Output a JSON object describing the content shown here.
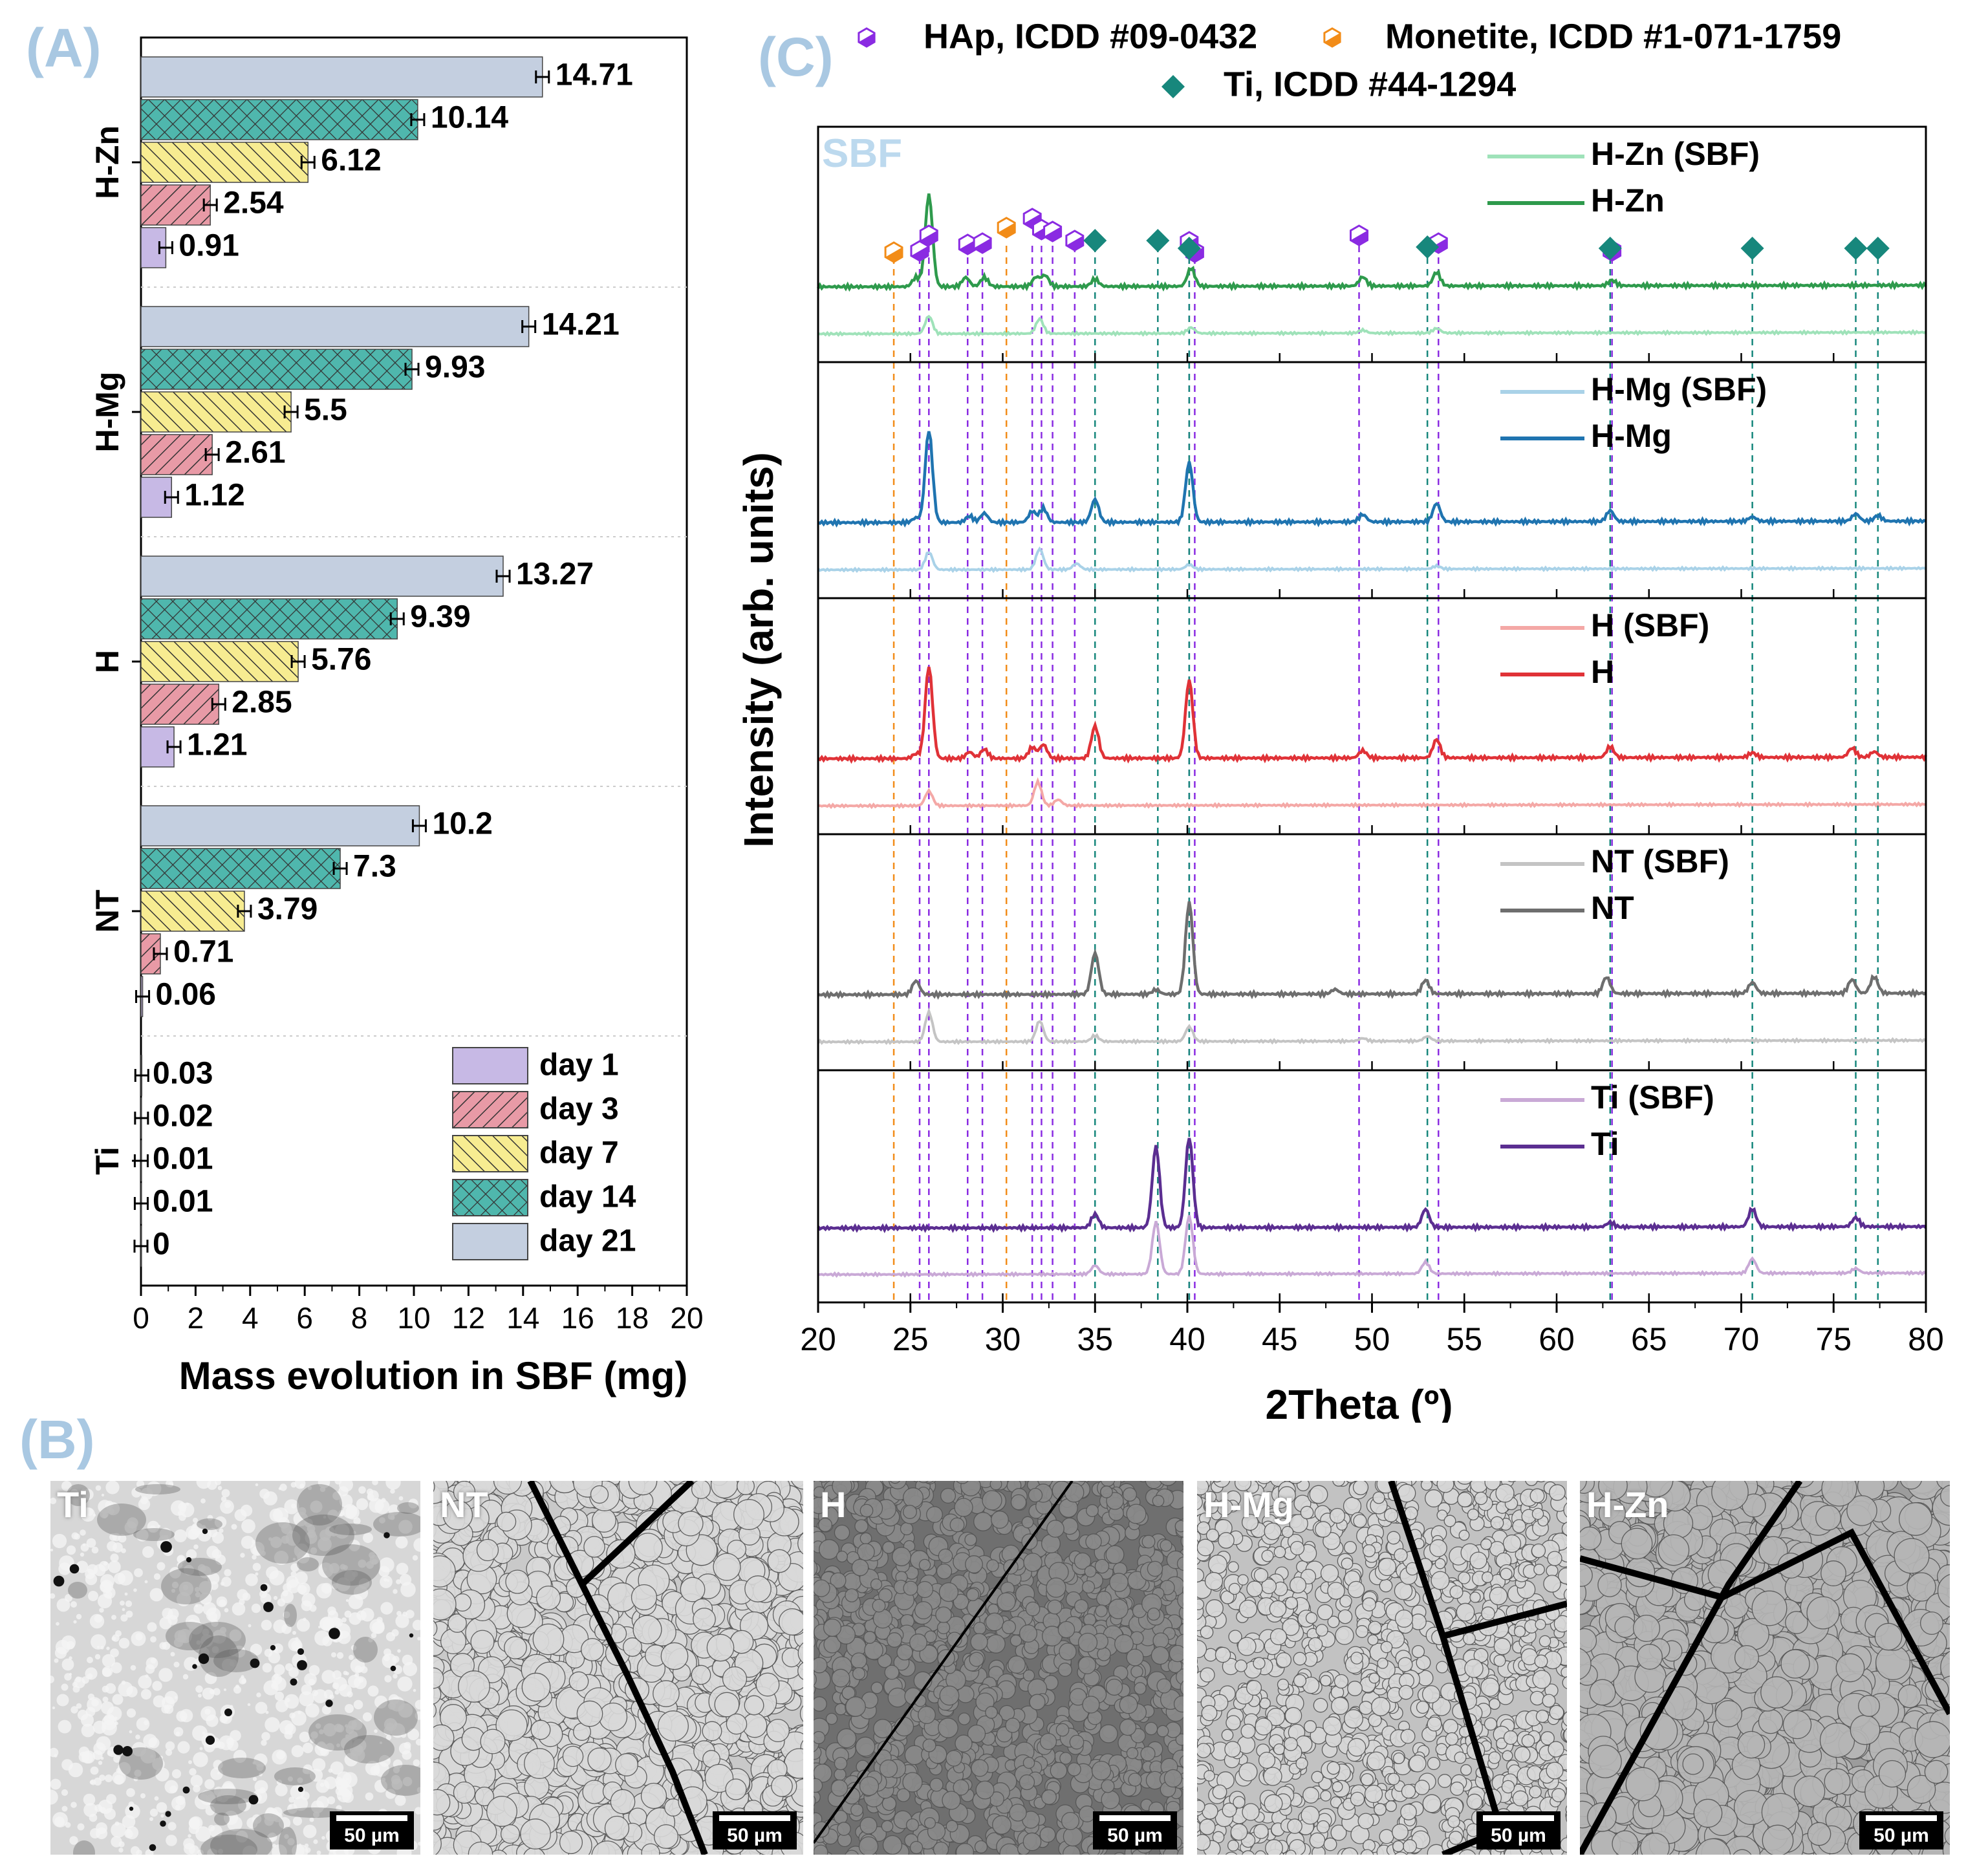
{
  "panel_letters": {
    "a": "(A)",
    "b": "(B)",
    "c": "(C)"
  },
  "colors": {
    "day1": "#c7b9e5",
    "day3": "#e89aa6",
    "day7": "#f7ec91",
    "day14": "#4fb7ad",
    "day21": "#c4cfe0",
    "hap": "#8a2be2",
    "monetite": "#f28c18",
    "ti": "#17877c"
  },
  "chart_data": [
    {
      "type": "bar",
      "orientation": "horizontal",
      "title": "(A)",
      "xlabel": "Mass evolution in SBF (mg)",
      "ylabel": "",
      "xlim": [
        0,
        20
      ],
      "xticks": [
        0,
        2,
        4,
        6,
        8,
        10,
        12,
        14,
        16,
        18,
        20
      ],
      "categories": [
        "H-Zn",
        "H-Mg",
        "H",
        "NT",
        "Ti"
      ],
      "series": [
        {
          "name": "day 1",
          "values": [
            0.91,
            1.12,
            1.21,
            0.06,
            0
          ]
        },
        {
          "name": "day 3",
          "values": [
            2.54,
            2.61,
            2.85,
            0.71,
            0.01
          ]
        },
        {
          "name": "day 7",
          "values": [
            6.12,
            5.5,
            5.76,
            3.79,
            0.01
          ]
        },
        {
          "name": "day 14",
          "values": [
            10.14,
            9.93,
            9.39,
            7.3,
            0.02
          ]
        },
        {
          "name": "day 21",
          "values": [
            14.71,
            14.21,
            13.27,
            10.2,
            0.03
          ]
        }
      ],
      "legend_position": "bottom-right"
    },
    {
      "type": "line",
      "title": "(C)",
      "xlabel": "2Theta (º)",
      "ylabel": "Intensity (arb. units)",
      "xlim": [
        20,
        80
      ],
      "xticks": [
        20,
        25,
        30,
        35,
        40,
        45,
        50,
        55,
        60,
        65,
        70,
        75,
        80
      ],
      "stacked_panels": [
        {
          "sample": "H-Zn",
          "sbf_label": "H-Zn (SBF)",
          "label": "H-Zn",
          "sbf_color": "#9fe2b9",
          "color": "#2e9a4c",
          "peaks": [
            [
              25.3,
              0.1
            ],
            [
              26.0,
              1.0
            ],
            [
              28.0,
              0.1
            ],
            [
              29.0,
              0.1
            ],
            [
              31.8,
              0.1
            ],
            [
              32.3,
              0.12
            ],
            [
              35.0,
              0.08
            ],
            [
              40.2,
              0.2
            ],
            [
              49.5,
              0.1
            ],
            [
              53.5,
              0.15
            ],
            [
              63.0,
              0.06
            ]
          ],
          "sbf_peaks": [
            [
              26.0,
              0.3
            ],
            [
              32.0,
              0.25
            ],
            [
              40.2,
              0.1
            ],
            [
              49.5,
              0.05
            ],
            [
              53.5,
              0.08
            ]
          ]
        },
        {
          "sample": "H-Mg",
          "sbf_label": "H-Mg (SBF)",
          "label": "H-Mg",
          "sbf_color": "#a9d2e8",
          "color": "#1f74b0",
          "peaks": [
            [
              25.3,
              0.05
            ],
            [
              26.0,
              1.0
            ],
            [
              28.2,
              0.07
            ],
            [
              29.0,
              0.1
            ],
            [
              31.6,
              0.12
            ],
            [
              32.2,
              0.15
            ],
            [
              35.0,
              0.25
            ],
            [
              40.1,
              0.65
            ],
            [
              49.5,
              0.08
            ],
            [
              53.5,
              0.2
            ],
            [
              62.9,
              0.12
            ],
            [
              70.6,
              0.05
            ],
            [
              76.2,
              0.08
            ],
            [
              77.4,
              0.06
            ]
          ],
          "sbf_peaks": [
            [
              26.0,
              0.3
            ],
            [
              32.0,
              0.35
            ],
            [
              34.0,
              0.1
            ],
            [
              40.1,
              0.08
            ],
            [
              53.5,
              0.05
            ]
          ]
        },
        {
          "sample": "H",
          "sbf_label": "H (SBF)",
          "label": "H",
          "sbf_color": "#f4a8a6",
          "color": "#e03237",
          "peaks": [
            [
              25.3,
              0.05
            ],
            [
              26.0,
              1.0
            ],
            [
              28.2,
              0.07
            ],
            [
              29.0,
              0.1
            ],
            [
              31.6,
              0.12
            ],
            [
              32.2,
              0.15
            ],
            [
              35.0,
              0.35
            ],
            [
              40.1,
              0.85
            ],
            [
              49.5,
              0.08
            ],
            [
              53.5,
              0.2
            ],
            [
              62.9,
              0.12
            ],
            [
              70.6,
              0.05
            ],
            [
              76.0,
              0.1
            ],
            [
              77.2,
              0.06
            ]
          ],
          "sbf_peaks": [
            [
              26.0,
              0.25
            ],
            [
              31.9,
              0.4
            ],
            [
              33.0,
              0.1
            ]
          ]
        },
        {
          "sample": "NT",
          "sbf_label": "NT (SBF)",
          "label": "NT",
          "sbf_color": "#c4c4c4",
          "color": "#6e6e6e",
          "peaks": [
            [
              25.3,
              0.15
            ],
            [
              35.0,
              0.45
            ],
            [
              38.3,
              0.05
            ],
            [
              40.1,
              1.0
            ],
            [
              48.0,
              0.05
            ],
            [
              52.9,
              0.15
            ],
            [
              62.7,
              0.18
            ],
            [
              70.6,
              0.12
            ],
            [
              76.0,
              0.15
            ],
            [
              77.2,
              0.18
            ]
          ],
          "sbf_peaks": [
            [
              26.0,
              0.5
            ],
            [
              32.0,
              0.35
            ],
            [
              35.0,
              0.1
            ],
            [
              40.1,
              0.25
            ],
            [
              49.5,
              0.05
            ],
            [
              53.0,
              0.08
            ]
          ]
        },
        {
          "sample": "Ti",
          "sbf_label": "Ti (SBF)",
          "label": "Ti",
          "sbf_color": "#c9a9d6",
          "color": "#5b2e91",
          "peaks": [
            [
              35.0,
              0.15
            ],
            [
              38.3,
              0.9
            ],
            [
              40.1,
              1.0
            ],
            [
              52.9,
              0.2
            ],
            [
              62.9,
              0.05
            ],
            [
              70.6,
              0.2
            ],
            [
              76.2,
              0.1
            ]
          ],
          "sbf_peaks": [
            [
              35.0,
              0.15
            ],
            [
              38.3,
              0.9
            ],
            [
              40.1,
              1.0
            ],
            [
              52.9,
              0.2
            ],
            [
              70.6,
              0.25
            ],
            [
              76.2,
              0.08
            ]
          ]
        }
      ],
      "sbf_annotation": "SBF",
      "legend": [
        {
          "symbol": "hexagon",
          "label": "HAp, ICDD #09-0432"
        },
        {
          "symbol": "half-hexagon",
          "label": "Monetite, ICDD #1-071-1759"
        },
        {
          "symbol": "diamond",
          "label": "Ti, ICDD #44-1294"
        }
      ],
      "reference_lines": {
        "hap": [
          25.5,
          26.0,
          28.1,
          28.9,
          31.6,
          32.1,
          32.7,
          33.9,
          40.1,
          40.4,
          49.3,
          53.6,
          63.0
        ],
        "monetite": [
          24.1,
          30.2
        ],
        "ti": [
          35.0,
          38.4,
          40.1,
          53.0,
          62.9,
          70.6,
          76.2,
          77.4
        ]
      }
    }
  ],
  "sem_panels": [
    {
      "label": "Ti",
      "scale": "50 µm"
    },
    {
      "label": "NT",
      "scale": "50 µm"
    },
    {
      "label": "H",
      "scale": "50 µm"
    },
    {
      "label": "H-Mg",
      "scale": "50 µm"
    },
    {
      "label": "H-Zn",
      "scale": "50 µm"
    }
  ]
}
